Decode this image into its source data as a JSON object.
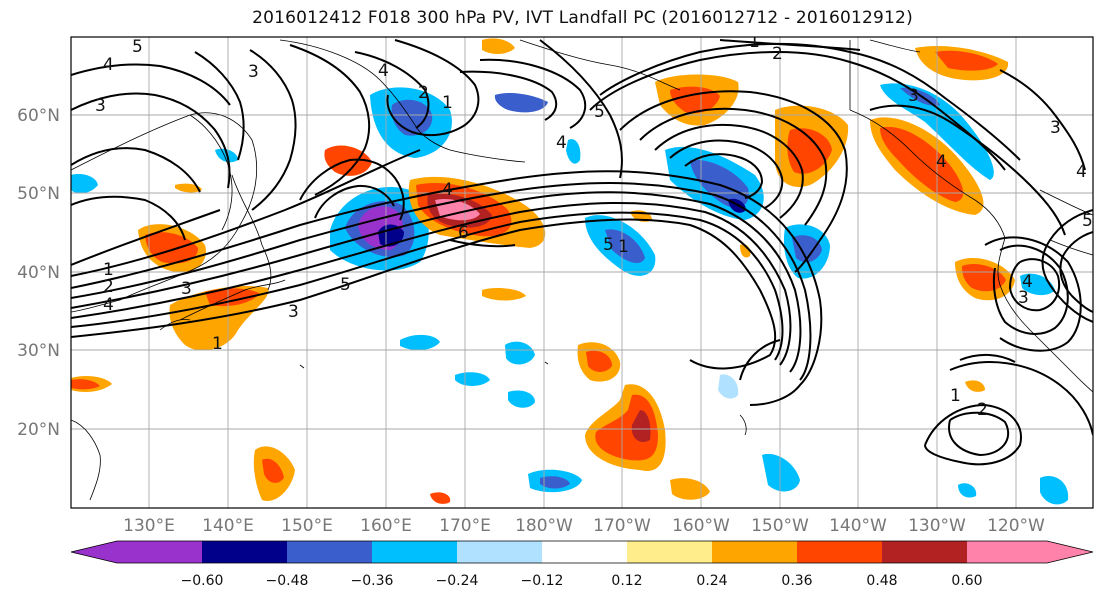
{
  "title": "2016012412 F018 300 hPa PV, IVT Landfall PC (2016012712 - 2016012912)",
  "lat_labels": [
    "60°N",
    "50°N",
    "40°N",
    "30°N",
    "20°N"
  ],
  "lon_labels": [
    "130°E",
    "140°E",
    "150°E",
    "160°E",
    "170°E",
    "180°W",
    "170°W",
    "160°W",
    "150°W",
    "140°W",
    "130°W",
    "120°W"
  ],
  "colorbar": {
    "colors": [
      "#9932cc",
      "#00008b",
      "#3a5fcd",
      "#00bfff",
      "#b0e2ff",
      "#ffffff",
      "#ffec8b",
      "#ffa500",
      "#ff4500",
      "#b22222",
      "#ff82ab"
    ],
    "tick_labels": [
      "−0.60",
      "−0.48",
      "−0.36",
      "−0.24",
      "−0.12",
      "0.12",
      "0.24",
      "0.36",
      "0.48",
      "0.60"
    ]
  },
  "contour_labels": [
    "1",
    "2",
    "3",
    "4",
    "5",
    "6"
  ]
}
